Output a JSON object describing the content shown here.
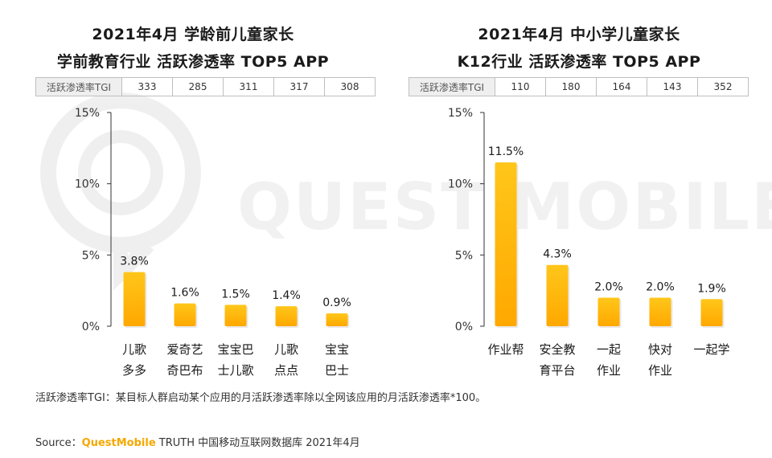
{
  "watermark": {
    "text": "QUEST MOBILE"
  },
  "chart_data": [
    {
      "type": "bar",
      "title": [
        "2021年4月 学龄前儿童家长",
        "学前教育行业 活跃渗透率 TOP5 APP"
      ],
      "tgi_header": "活跃渗透率TGI",
      "tgi": [
        "333",
        "285",
        "311",
        "317",
        "308"
      ],
      "categories": [
        [
          "儿歌",
          "多多"
        ],
        [
          "爱奇艺",
          "奇巴布"
        ],
        [
          "宝宝巴",
          "士儿歌"
        ],
        [
          "儿歌",
          "点点"
        ],
        [
          "宝宝",
          "巴士"
        ]
      ],
      "values": [
        3.8,
        1.6,
        1.5,
        1.4,
        0.9
      ],
      "value_labels": [
        "3.8%",
        "1.6%",
        "1.5%",
        "1.4%",
        "0.9%"
      ],
      "yticks": [
        0,
        5,
        10,
        15
      ],
      "ytick_labels": [
        "0%",
        "5%",
        "10%",
        "15%"
      ],
      "ylim": [
        0,
        15
      ],
      "xlabel": "",
      "ylabel": "",
      "bar_color": "#FFC000"
    },
    {
      "type": "bar",
      "title": [
        "2021年4月 中小学儿童家长",
        "K12行业 活跃渗透率 TOP5 APP"
      ],
      "tgi_header": "活跃渗透率TGI",
      "tgi": [
        "110",
        "180",
        "164",
        "143",
        "352"
      ],
      "categories": [
        [
          "作业帮"
        ],
        [
          "安全教",
          "育平台"
        ],
        [
          "一起",
          "作业"
        ],
        [
          "快对",
          "作业"
        ],
        [
          "一起学"
        ]
      ],
      "values": [
        11.5,
        4.3,
        2.0,
        2.0,
        1.9
      ],
      "value_labels": [
        "11.5%",
        "4.3%",
        "2.0%",
        "2.0%",
        "1.9%"
      ],
      "yticks": [
        0,
        5,
        10,
        15
      ],
      "ytick_labels": [
        "0%",
        "5%",
        "10%",
        "15%"
      ],
      "ylim": [
        0,
        15
      ],
      "xlabel": "",
      "ylabel": "",
      "bar_color": "#FFC000"
    }
  ],
  "footnote": "活跃渗透率TGI：某目标人群启动某个应用的月活跃渗透率除以全网该应用的月活跃渗透率*100。",
  "source": {
    "label": "Source：",
    "brand": "QuestMobile",
    "rest": " TRUTH 中国移动互联网数据库 2021年4月"
  }
}
